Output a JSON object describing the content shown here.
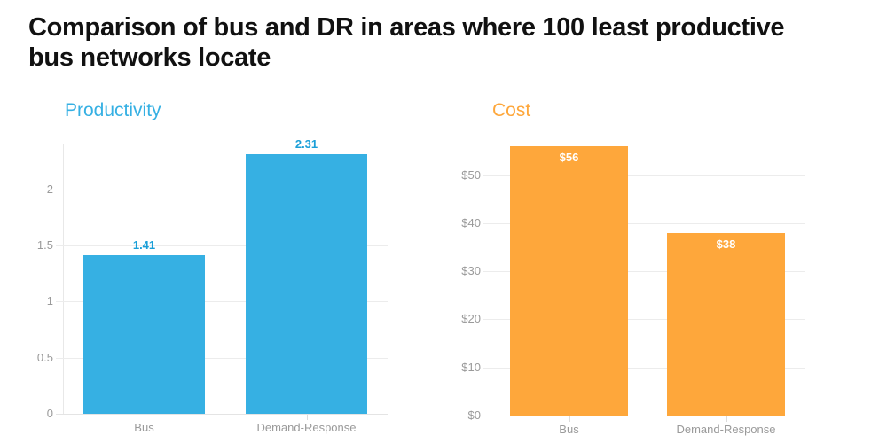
{
  "title": "Comparison of bus and DR  in areas where 100 least productive bus networks locate",
  "chart_data": [
    {
      "type": "bar",
      "title": "Productivity",
      "categories": [
        "Bus",
        "Demand-Response"
      ],
      "values": [
        1.41,
        2.31
      ],
      "value_labels": [
        "1.41",
        "2.31"
      ],
      "yticks": [
        0,
        0.5,
        1,
        1.5,
        2
      ],
      "ytick_labels": [
        "0",
        "0.5",
        "1",
        "1.5",
        "2"
      ],
      "ylim": [
        0,
        2.4
      ],
      "xlabel": "",
      "ylabel": "",
      "grid": true,
      "color": "#36b0e3",
      "title_color": "#36b0e3",
      "label_color": "#1a9fd8"
    },
    {
      "type": "bar",
      "title": "Cost",
      "categories": [
        "Bus",
        "Demand-Response"
      ],
      "values": [
        56,
        38
      ],
      "value_labels": [
        "$56",
        "$38"
      ],
      "yticks": [
        0,
        10,
        20,
        30,
        40,
        50
      ],
      "ytick_labels": [
        "$0",
        "$10",
        "$20",
        "$30",
        "$40",
        "$50"
      ],
      "ylim": [
        0,
        56
      ],
      "xlabel": "",
      "ylabel": "",
      "grid": true,
      "color": "#fea73b",
      "title_color": "#fea73b",
      "label_color": "#ffffff"
    }
  ]
}
